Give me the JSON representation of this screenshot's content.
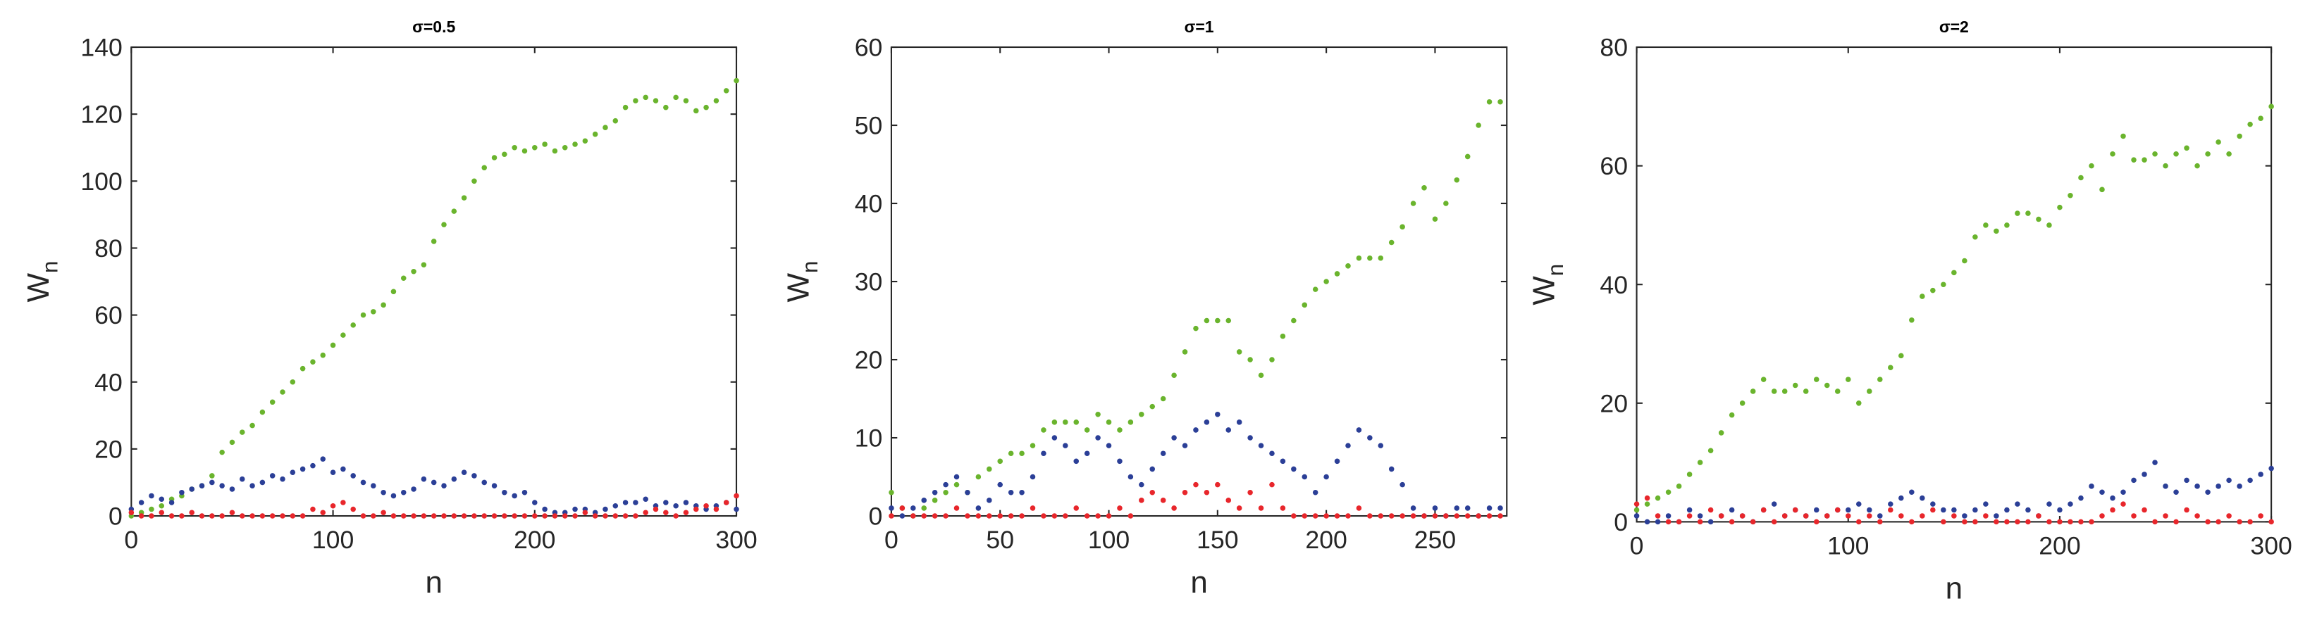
{
  "chart_data": [
    {
      "type": "scatter",
      "title": "σ=0.5",
      "xlabel": "n",
      "ylabel": "W",
      "ylabel_subscript": "n",
      "x": [
        0,
        5,
        10,
        15,
        20,
        25,
        30,
        35,
        40,
        45,
        50,
        55,
        60,
        65,
        70,
        75,
        80,
        85,
        90,
        95,
        100,
        105,
        110,
        115,
        120,
        125,
        130,
        135,
        140,
        145,
        150,
        155,
        160,
        165,
        170,
        175,
        180,
        185,
        190,
        195,
        200,
        205,
        210,
        215,
        220,
        225,
        230,
        235,
        240,
        245,
        250,
        255,
        260,
        265,
        270,
        275,
        280,
        285,
        290,
        295,
        300
      ],
      "xlim": [
        0,
        300
      ],
      "xticks": [
        0,
        100,
        200,
        300
      ],
      "ylim": [
        0,
        140
      ],
      "yticks": [
        0,
        20,
        40,
        60,
        80,
        100,
        120,
        140
      ],
      "series": [
        {
          "color": "#6ab42d",
          "values": [
            0,
            1,
            2,
            3,
            5,
            6,
            8,
            9,
            12,
            19,
            22,
            25,
            27,
            31,
            34,
            37,
            40,
            44,
            46,
            48,
            51,
            54,
            57,
            60,
            61,
            63,
            67,
            71,
            73,
            75,
            82,
            87,
            91,
            95,
            100,
            104,
            107,
            108,
            110,
            109,
            110,
            111,
            109,
            110,
            111,
            112,
            114,
            116,
            118,
            122,
            124,
            125,
            124,
            122,
            125,
            124,
            121,
            122,
            124,
            127,
            130
          ]
        },
        {
          "color": "#2b3f97",
          "values": [
            2,
            4,
            6,
            5,
            4,
            7,
            8,
            9,
            10,
            9,
            8,
            11,
            9,
            10,
            12,
            11,
            13,
            14,
            15,
            17,
            13,
            14,
            12,
            10,
            9,
            7,
            6,
            7,
            8,
            11,
            10,
            9,
            11,
            13,
            12,
            10,
            9,
            7,
            6,
            7,
            4,
            2,
            1,
            1,
            2,
            2,
            1,
            2,
            3,
            4,
            4,
            5,
            3,
            4,
            3,
            4,
            3,
            2,
            3,
            4,
            2
          ]
        },
        {
          "color": "#e8262b",
          "values": [
            1,
            0,
            0,
            1,
            0,
            0,
            1,
            0,
            0,
            0,
            1,
            0,
            0,
            0,
            0,
            0,
            0,
            0,
            2,
            1,
            3,
            4,
            2,
            0,
            0,
            1,
            0,
            0,
            0,
            0,
            0,
            0,
            0,
            0,
            0,
            0,
            0,
            0,
            0,
            0,
            0,
            0,
            0,
            0,
            0,
            1,
            0,
            0,
            0,
            0,
            0,
            1,
            2,
            1,
            0,
            1,
            2,
            3,
            2,
            4,
            6
          ]
        }
      ]
    },
    {
      "type": "scatter",
      "title": "σ=1",
      "xlabel": "n",
      "ylabel": "W",
      "ylabel_subscript": "n",
      "x": [
        0,
        5,
        10,
        15,
        20,
        25,
        30,
        35,
        40,
        45,
        50,
        55,
        60,
        65,
        70,
        75,
        80,
        85,
        90,
        95,
        100,
        105,
        110,
        115,
        120,
        125,
        130,
        135,
        140,
        145,
        150,
        155,
        160,
        165,
        170,
        175,
        180,
        185,
        190,
        195,
        200,
        205,
        210,
        215,
        220,
        225,
        230,
        235,
        240,
        245,
        250,
        255,
        260,
        265,
        270,
        275,
        280
      ],
      "xlim": [
        0,
        283
      ],
      "xticks": [
        0,
        50,
        100,
        150,
        200,
        250
      ],
      "ylim": [
        0,
        60
      ],
      "yticks": [
        0,
        10,
        20,
        30,
        40,
        50,
        60
      ],
      "series": [
        {
          "color": "#6ab42d",
          "values": [
            3,
            1,
            0,
            1,
            2,
            3,
            4,
            3,
            5,
            6,
            7,
            8,
            8,
            9,
            11,
            12,
            12,
            12,
            11,
            13,
            12,
            11,
            12,
            13,
            14,
            15,
            18,
            21,
            24,
            25,
            25,
            25,
            21,
            20,
            18,
            20,
            23,
            25,
            27,
            29,
            30,
            31,
            32,
            33,
            33,
            33,
            35,
            37,
            40,
            42,
            38,
            40,
            43,
            46,
            50,
            53,
            53
          ]
        },
        {
          "color": "#2b3f97",
          "values": [
            1,
            0,
            1,
            2,
            3,
            4,
            5,
            3,
            1,
            2,
            4,
            3,
            3,
            5,
            8,
            10,
            9,
            7,
            8,
            10,
            9,
            7,
            5,
            4,
            6,
            8,
            10,
            9,
            11,
            12,
            13,
            11,
            12,
            10,
            9,
            8,
            7,
            6,
            5,
            3,
            5,
            7,
            9,
            11,
            10,
            9,
            6,
            4,
            1,
            0,
            1,
            0,
            1,
            1,
            0,
            1,
            1
          ]
        },
        {
          "color": "#e8262b",
          "values": [
            0,
            1,
            0,
            0,
            0,
            0,
            1,
            0,
            0,
            0,
            0,
            0,
            0,
            1,
            0,
            0,
            0,
            1,
            0,
            0,
            0,
            1,
            0,
            2,
            3,
            2,
            1,
            3,
            4,
            3,
            4,
            2,
            1,
            3,
            1,
            4,
            1,
            0,
            0,
            0,
            0,
            0,
            0,
            1,
            0,
            0,
            0,
            0,
            0,
            0,
            0,
            0,
            0,
            0,
            0,
            0,
            0
          ]
        }
      ]
    },
    {
      "type": "scatter",
      "title": "σ=2",
      "xlabel": "n",
      "ylabel": "W",
      "ylabel_subscript": "n",
      "x": [
        0,
        5,
        10,
        15,
        20,
        25,
        30,
        35,
        40,
        45,
        50,
        55,
        60,
        65,
        70,
        75,
        80,
        85,
        90,
        95,
        100,
        105,
        110,
        115,
        120,
        125,
        130,
        135,
        140,
        145,
        150,
        155,
        160,
        165,
        170,
        175,
        180,
        185,
        190,
        195,
        200,
        205,
        210,
        215,
        220,
        225,
        230,
        235,
        240,
        245,
        250,
        255,
        260,
        265,
        270,
        275,
        280,
        285,
        290,
        295,
        300
      ],
      "xlim": [
        0,
        300
      ],
      "xticks": [
        0,
        100,
        200,
        300
      ],
      "ylim": [
        0,
        80
      ],
      "yticks": [
        0,
        20,
        40,
        60,
        80
      ],
      "series": [
        {
          "color": "#6ab42d",
          "values": [
            2,
            3,
            4,
            5,
            6,
            8,
            10,
            12,
            15,
            18,
            20,
            22,
            24,
            22,
            22,
            23,
            22,
            24,
            23,
            22,
            24,
            20,
            22,
            24,
            26,
            28,
            34,
            38,
            39,
            40,
            42,
            44,
            48,
            50,
            49,
            50,
            52,
            52,
            51,
            50,
            53,
            55,
            58,
            60,
            56,
            62,
            65,
            61,
            61,
            62,
            60,
            62,
            63,
            60,
            62,
            64,
            62,
            65,
            67,
            68,
            70
          ]
        },
        {
          "color": "#2b3f97",
          "values": [
            1,
            0,
            0,
            1,
            0,
            2,
            1,
            0,
            1,
            2,
            1,
            0,
            2,
            3,
            1,
            2,
            1,
            2,
            1,
            2,
            2,
            3,
            2,
            1,
            3,
            4,
            5,
            4,
            3,
            2,
            2,
            1,
            2,
            3,
            1,
            2,
            3,
            2,
            1,
            3,
            2,
            3,
            4,
            6,
            5,
            4,
            5,
            7,
            8,
            10,
            6,
            5,
            7,
            6,
            5,
            6,
            7,
            6,
            7,
            8,
            9
          ]
        },
        {
          "color": "#e8262b",
          "values": [
            3,
            4,
            1,
            0,
            0,
            1,
            0,
            2,
            1,
            0,
            1,
            0,
            2,
            0,
            1,
            2,
            1,
            0,
            1,
            2,
            1,
            0,
            1,
            0,
            2,
            1,
            0,
            1,
            2,
            0,
            1,
            0,
            0,
            1,
            0,
            0,
            0,
            0,
            1,
            0,
            0,
            0,
            0,
            0,
            1,
            2,
            3,
            1,
            2,
            0,
            1,
            0,
            2,
            1,
            0,
            0,
            1,
            0,
            0,
            1,
            0
          ]
        }
      ]
    }
  ]
}
